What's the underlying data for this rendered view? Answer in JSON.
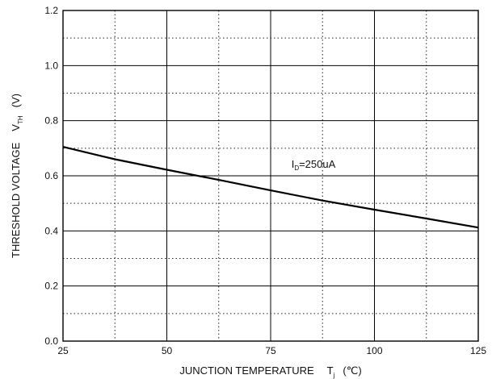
{
  "chart_data": {
    "type": "line",
    "title": "",
    "xlabel": {
      "main": "JUNCTION TEMPERATURE",
      "symbol": "T",
      "subscript": "j",
      "unit": "(℃)"
    },
    "ylabel": {
      "main": "THRESHOLD VOLTAGE",
      "symbol": "V",
      "subscript": "TH",
      "unit": "(V)"
    },
    "xlim": [
      25,
      125
    ],
    "ylim": [
      0.0,
      1.2
    ],
    "x_ticks": [
      "25",
      "50",
      "75",
      "100",
      "125"
    ],
    "y_ticks": [
      "0.0",
      "0.2",
      "0.4",
      "0.6",
      "0.8",
      "1.0",
      "1.2"
    ],
    "grid": {
      "major": "solid",
      "minor": "dotted",
      "x_minor_step": 12.5,
      "y_minor_step": 0.1
    },
    "series": [
      {
        "x": [
          25,
          37.5,
          50,
          62.5,
          75,
          87.5,
          100,
          112.5,
          125
        ],
        "y": [
          0.705,
          0.66,
          0.622,
          0.585,
          0.547,
          0.51,
          0.477,
          0.445,
          0.412
        ],
        "color": "#000000"
      }
    ],
    "annotations": [
      {
        "prefix": "I",
        "subscript": "D",
        "text": "=250uA",
        "x": 80,
        "y": 0.63
      }
    ]
  }
}
